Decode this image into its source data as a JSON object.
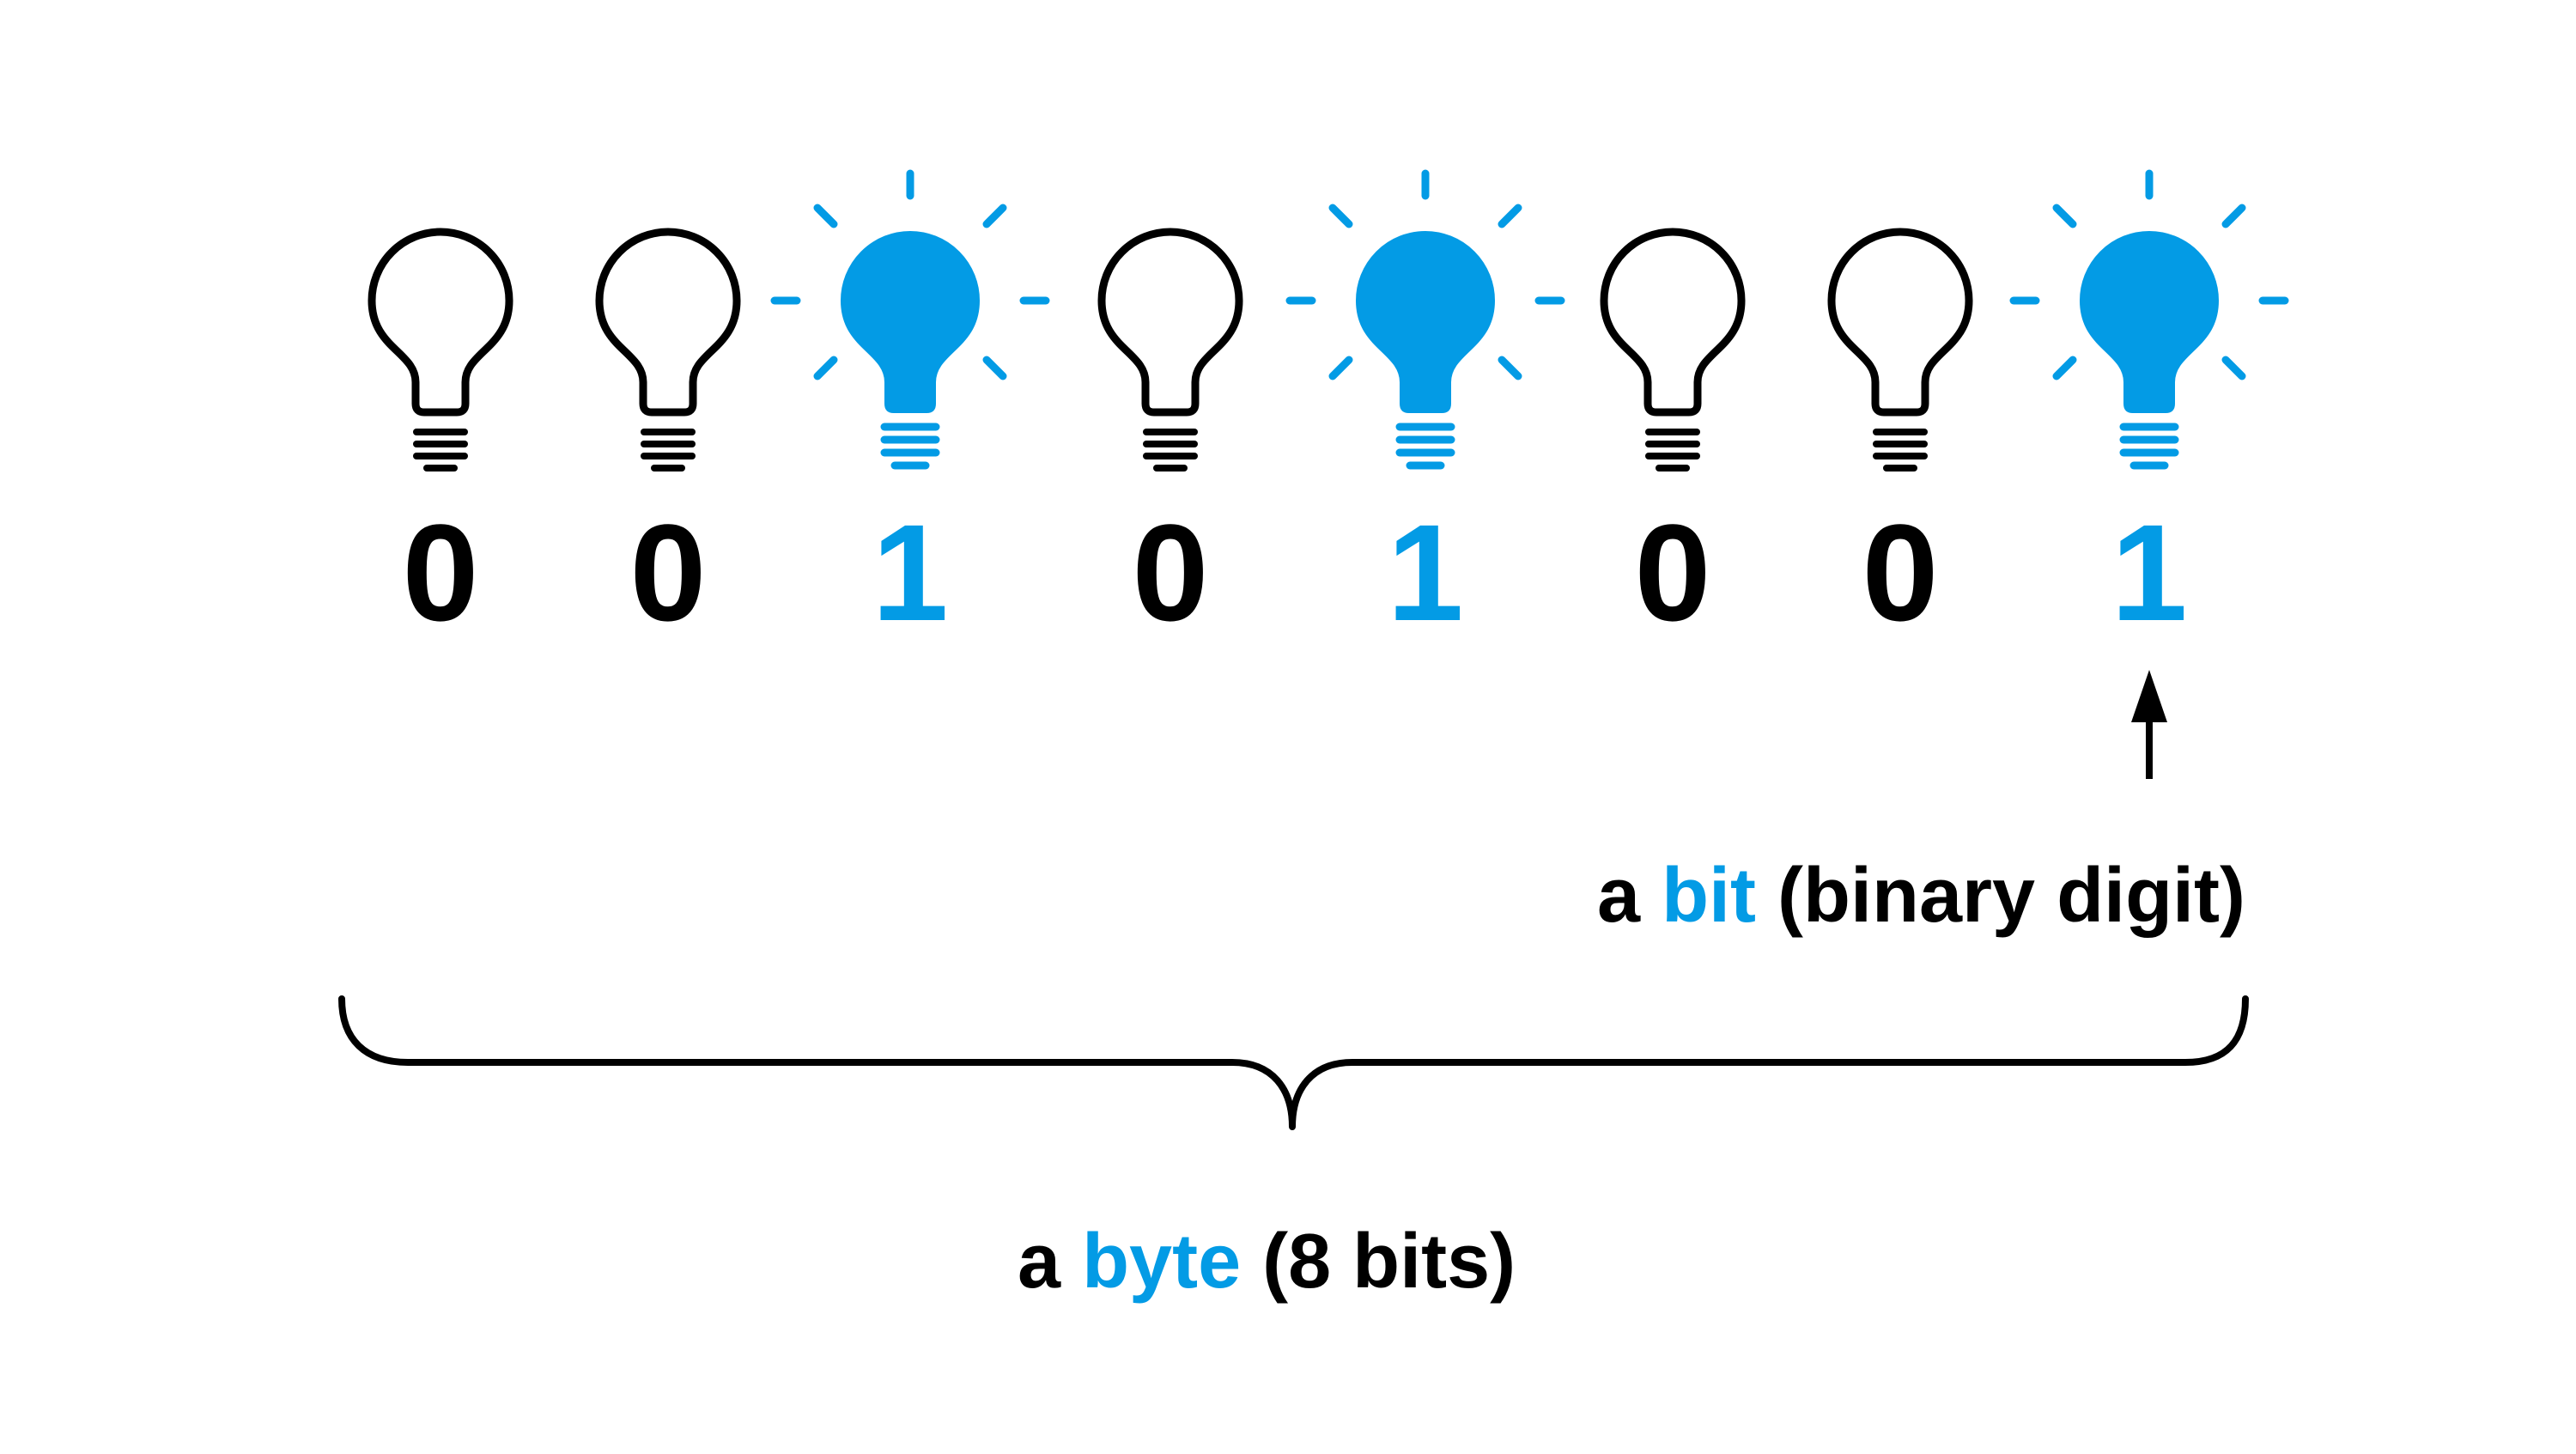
{
  "colors": {
    "on": "#039be5",
    "off": "#000000",
    "background": "#ffffff"
  },
  "bits": [
    {
      "value": "0",
      "state": "off"
    },
    {
      "value": "0",
      "state": "off"
    },
    {
      "value": "1",
      "state": "on"
    },
    {
      "value": "0",
      "state": "off"
    },
    {
      "value": "1",
      "state": "on"
    },
    {
      "value": "0",
      "state": "off"
    },
    {
      "value": "0",
      "state": "off"
    },
    {
      "value": "1",
      "state": "on"
    }
  ],
  "bit_label": {
    "prefix": "a ",
    "highlight": "bit",
    "suffix": " (binary digit)"
  },
  "byte_label": {
    "prefix": "a ",
    "highlight": "byte",
    "suffix": " (8 bits)"
  },
  "icons": {
    "bulb": "lightbulb-icon",
    "arrow": "arrow-up-icon",
    "brace": "curly-brace"
  }
}
